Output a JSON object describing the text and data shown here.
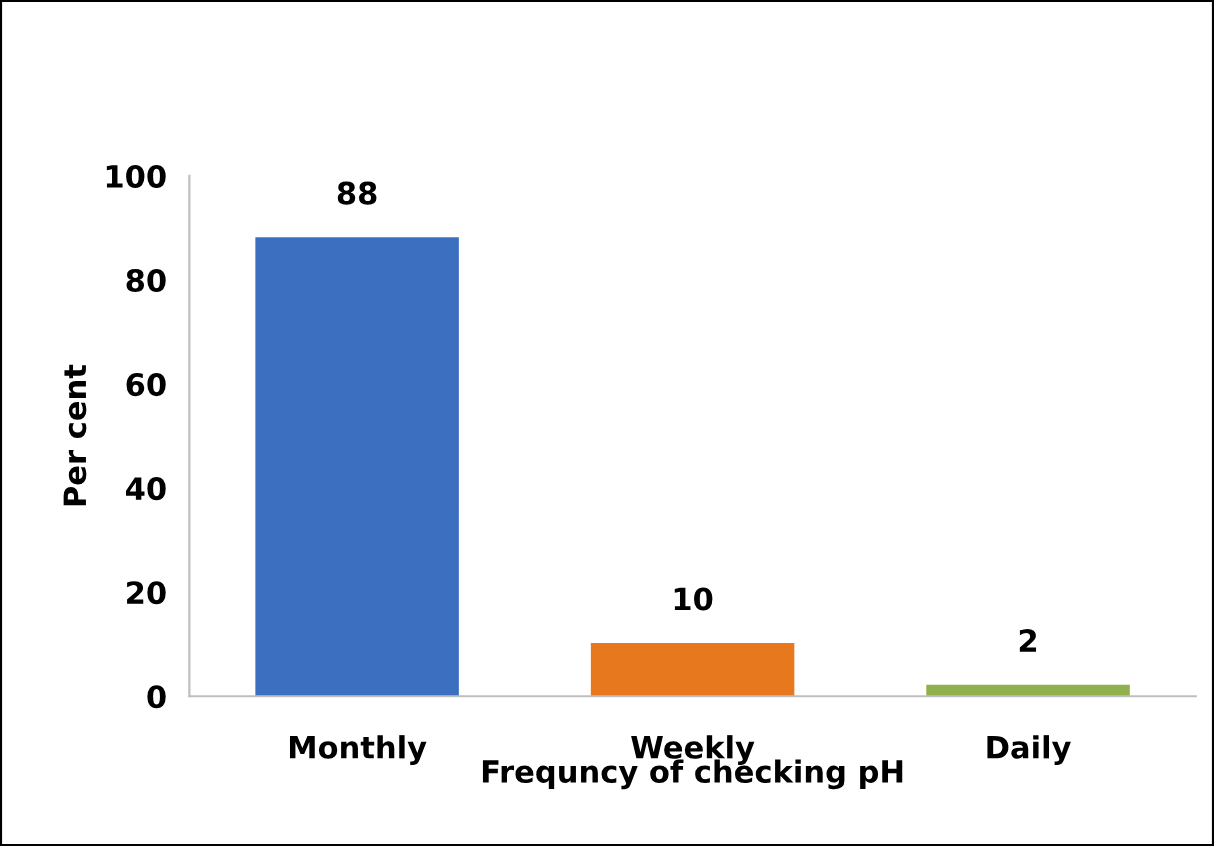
{
  "chart_data": {
    "type": "bar",
    "xlabel": "Frequncy of checking pH",
    "ylabel": "Per cent",
    "categories": [
      "Monthly",
      "Weekly",
      "Daily"
    ],
    "values": [
      88,
      10,
      2
    ],
    "colors": [
      "#3d6fc0",
      "#e8781e",
      "#8fb04c"
    ],
    "ylim": [
      0,
      100
    ],
    "yticks": [
      0,
      20,
      40,
      60,
      80,
      100
    ],
    "grid": false,
    "data_labels": true
  }
}
